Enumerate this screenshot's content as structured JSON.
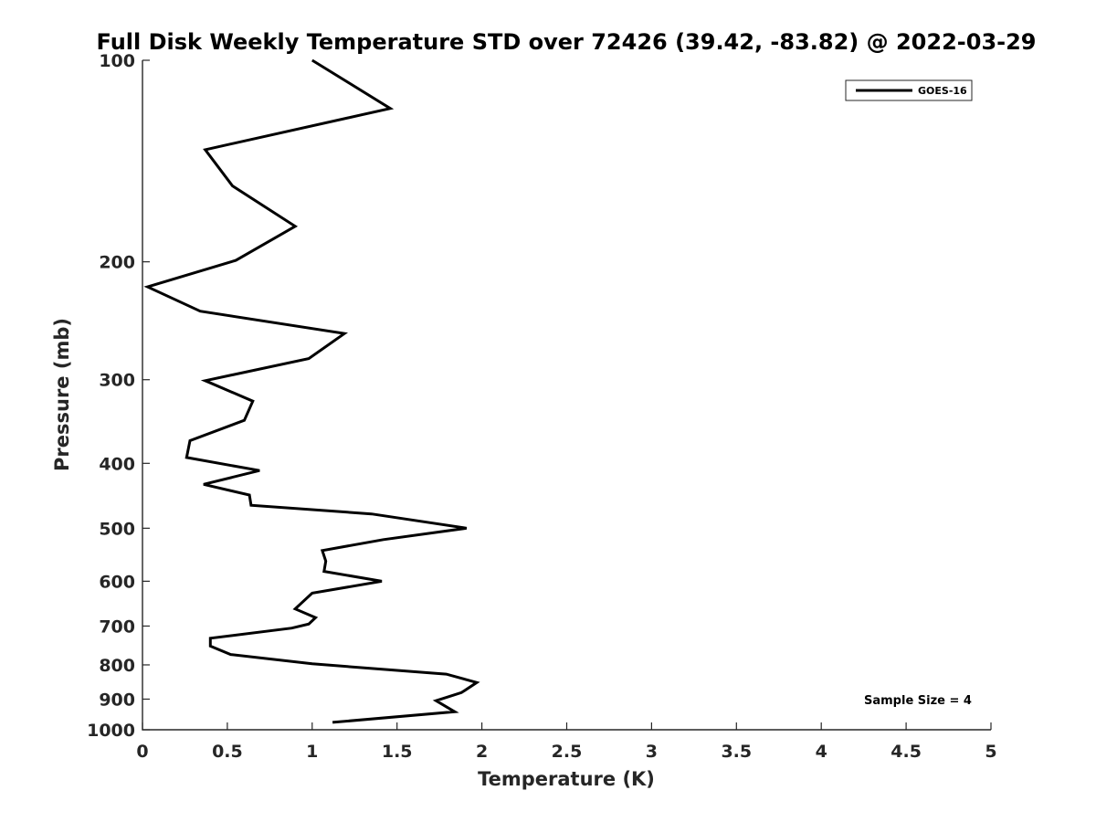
{
  "chart_data": {
    "type": "line",
    "title": "Full Disk Weekly Temperature STD over 72426 (39.42, -83.82) @ 2022-03-29",
    "xlabel": "Temperature (K)",
    "ylabel": "Pressure (mb)",
    "xlim": [
      0,
      5
    ],
    "ylim": [
      100,
      1000
    ],
    "y_scale": "log",
    "y_reversed": true,
    "x_ticks": [
      "0",
      "0.5",
      "1",
      "1.5",
      "2",
      "2.5",
      "3",
      "3.5",
      "4",
      "4.5",
      "5"
    ],
    "y_ticks": [
      "100",
      "200",
      "300",
      "400",
      "500",
      "600",
      "700",
      "800",
      "900",
      "1000"
    ],
    "grid": false,
    "legend": {
      "position": "top-right",
      "entries": [
        "GOES-16"
      ]
    },
    "annotation": "Sample Size = 4",
    "line_color": "#000000",
    "series": [
      {
        "name": "GOES-16",
        "x": [
          1.0,
          1.46,
          0.37,
          0.53,
          0.9,
          0.55,
          0.03,
          0.34,
          1.19,
          0.98,
          0.37,
          0.65,
          0.6,
          0.28,
          0.26,
          0.69,
          0.36,
          0.63,
          0.64,
          1.35,
          1.91,
          1.42,
          1.06,
          1.08,
          1.07,
          1.41,
          1.0,
          0.9,
          1.02,
          0.98,
          0.88,
          0.4,
          0.4,
          0.52,
          1.0,
          1.79,
          1.97,
          1.88,
          1.73,
          1.84,
          1.12
        ],
        "y": [
          100,
          118,
          136,
          154,
          177,
          199,
          218,
          237,
          256,
          279,
          301,
          323,
          345,
          370,
          392,
          410,
          430,
          446,
          462,
          476,
          500,
          520,
          540,
          560,
          580,
          600,
          625,
          660,
          680,
          695,
          705,
          730,
          750,
          772,
          797,
          826,
          850,
          880,
          905,
          940,
          975
        ]
      }
    ]
  }
}
